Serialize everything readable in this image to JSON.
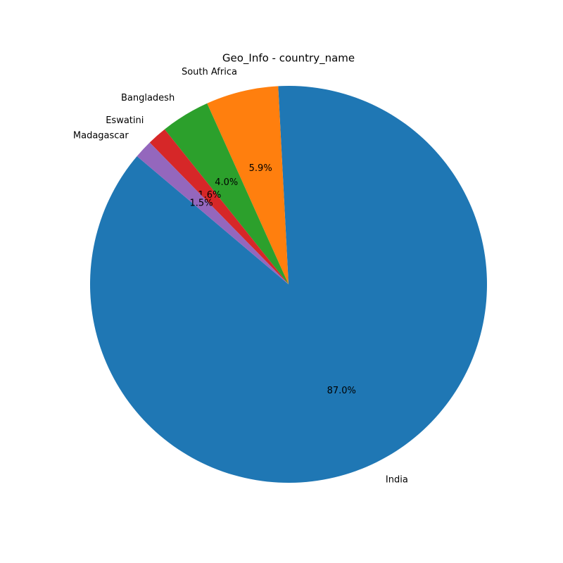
{
  "chart_data": {
    "type": "pie",
    "title": "Geo_Info - country_name",
    "categories": [
      "India",
      "South Africa",
      "Bangladesh",
      "Eswatini",
      "Madagascar"
    ],
    "values": [
      87.0,
      5.9,
      4.0,
      1.6,
      1.5
    ],
    "value_labels": [
      "87.0%",
      "5.9%",
      "4.0%",
      "1.6%",
      "1.5%"
    ],
    "colors": [
      "#1f77b4",
      "#ff7f0e",
      "#2ca02c",
      "#d62728",
      "#9467bd"
    ]
  }
}
